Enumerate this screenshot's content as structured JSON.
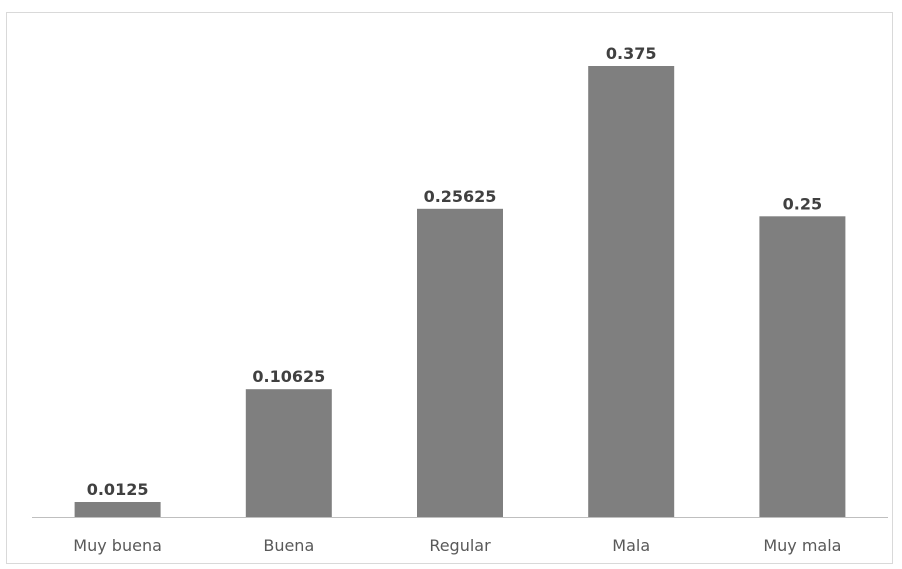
{
  "chart_data": {
    "type": "bar",
    "categories": [
      "Muy buena",
      "Buena",
      "Regular",
      "Mala",
      "Muy mala"
    ],
    "values": [
      0.0125,
      0.10625,
      0.25625,
      0.375,
      0.25
    ],
    "data_labels": [
      "0.0125",
      "0.10625",
      "0.25625",
      "0.375",
      "0.25"
    ],
    "ylim": [
      0,
      0.375
    ],
    "grid": false,
    "legend": "none",
    "colors": {
      "bar": "#7f7f7f",
      "axis": "#bfbfbf"
    }
  }
}
